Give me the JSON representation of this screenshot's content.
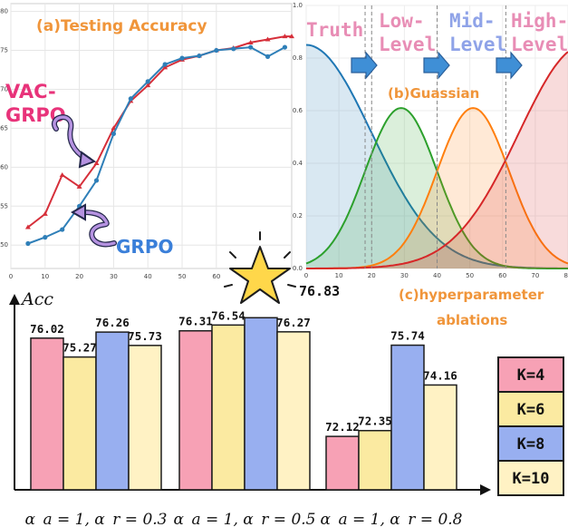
{
  "panel_a": {
    "title": "(a)Testing Accuracy",
    "label_vac": "VAC-",
    "label_vac2": "GRPO",
    "label_grpo": "GRPO",
    "colors": {
      "vac": "#d62f3a",
      "grpo": "#2f7fb8",
      "title": "#f0953a",
      "vac_label": "#e8337a",
      "grpo_label": "#3a7fd9"
    }
  },
  "panel_b": {
    "stages": [
      "Truth",
      "Low-",
      "Level",
      "Mid-",
      "Level",
      "High-",
      "Level"
    ],
    "subtitle": "(b)Guassian",
    "colors": {
      "truth": "#e88db5",
      "low": "#e88db5",
      "mid": "#8fa3e8",
      "high": "#e88db5",
      "subtitle": "#f0953a",
      "arrow": "#3f8fd6"
    }
  },
  "panel_c": {
    "title_line1": "(c)hyperparameter",
    "title_line2": "ablations",
    "axis_label": "Acc",
    "star_value": "76.83",
    "legend": [
      {
        "label": "K=4",
        "color": "#f7a1b5"
      },
      {
        "label": "K=6",
        "color": "#fbeaa1"
      },
      {
        "label": "K=8",
        "color": "#98aff0"
      },
      {
        "label": "K=10",
        "color": "#fff2c4"
      }
    ]
  },
  "chart_data": [
    {
      "type": "line",
      "title": "(a)Testing Accuracy",
      "x": [
        5,
        10,
        15,
        20,
        25,
        30,
        35,
        40,
        45,
        50,
        55,
        60,
        65,
        70,
        75,
        80,
        85
      ],
      "series": [
        {
          "name": "VAC-GRPO",
          "values": [
            52.3,
            54.0,
            59.0,
            57.5,
            60.5,
            65.0,
            68.5,
            70.5,
            72.8,
            73.8,
            74.3,
            75.0,
            75.3,
            76.0,
            76.4,
            76.8,
            76.8
          ]
        },
        {
          "name": "GRPO",
          "values": [
            50.2,
            51.0,
            52.0,
            55.0,
            58.3,
            64.3,
            68.8,
            71.0,
            73.2,
            74.0,
            74.3,
            75.0,
            75.2,
            75.4,
            74.2,
            75.4,
            null
          ]
        }
      ],
      "xlim": [
        0,
        82
      ],
      "ylim": [
        47,
        81
      ],
      "xticks": [
        0,
        10,
        20,
        30,
        40,
        50,
        60
      ],
      "yticks": [
        50,
        55,
        60,
        65,
        70,
        75,
        80
      ]
    },
    {
      "type": "area",
      "title": "(b)Guassian",
      "curves": [
        {
          "mu": 0,
          "sigma": 20,
          "peak": 0.85,
          "color": "#1f77b4"
        },
        {
          "mu": 29,
          "sigma": 11,
          "peak": 0.61,
          "color": "#2ca02c"
        },
        {
          "mu": 51,
          "sigma": 11,
          "peak": 0.61,
          "color": "#ff7f0e"
        },
        {
          "mu": 85,
          "sigma": 20,
          "peak": 0.85,
          "color": "#d62728"
        }
      ],
      "vlines": [
        18,
        20,
        40,
        61
      ],
      "xlim": [
        0,
        80
      ],
      "ylim": [
        0,
        1.0
      ],
      "xticks": [
        0,
        10,
        20,
        30,
        40,
        50,
        60,
        70,
        80
      ],
      "yticks": [
        0.0,
        0.2,
        0.4,
        0.6,
        0.8,
        1.0
      ]
    },
    {
      "type": "bar",
      "title": "(c)hyperparameter ablations",
      "ylabel": "Acc",
      "categories": [
        "α_a = 1, α_r = 0.3",
        "α_a = 1, α_r = 0.5",
        "α_a = 1, α_r = 0.8"
      ],
      "series": [
        {
          "name": "K=4",
          "values": [
            76.02,
            76.31,
            72.12
          ],
          "labels": [
            "76.02",
            "76.31",
            "72.12"
          ]
        },
        {
          "name": "K=6",
          "values": [
            75.27,
            76.54,
            72.35
          ],
          "labels": [
            "75.27",
            "76.54",
            "72.35"
          ]
        },
        {
          "name": "K=8",
          "values": [
            76.26,
            76.83,
            75.74
          ],
          "labels": [
            "76.26",
            "",
            "75.74"
          ]
        },
        {
          "name": "K=10",
          "values": [
            75.73,
            76.27,
            74.16
          ],
          "labels": [
            "75.73",
            "76.27",
            "74.16"
          ]
        }
      ],
      "legend": "right"
    }
  ]
}
